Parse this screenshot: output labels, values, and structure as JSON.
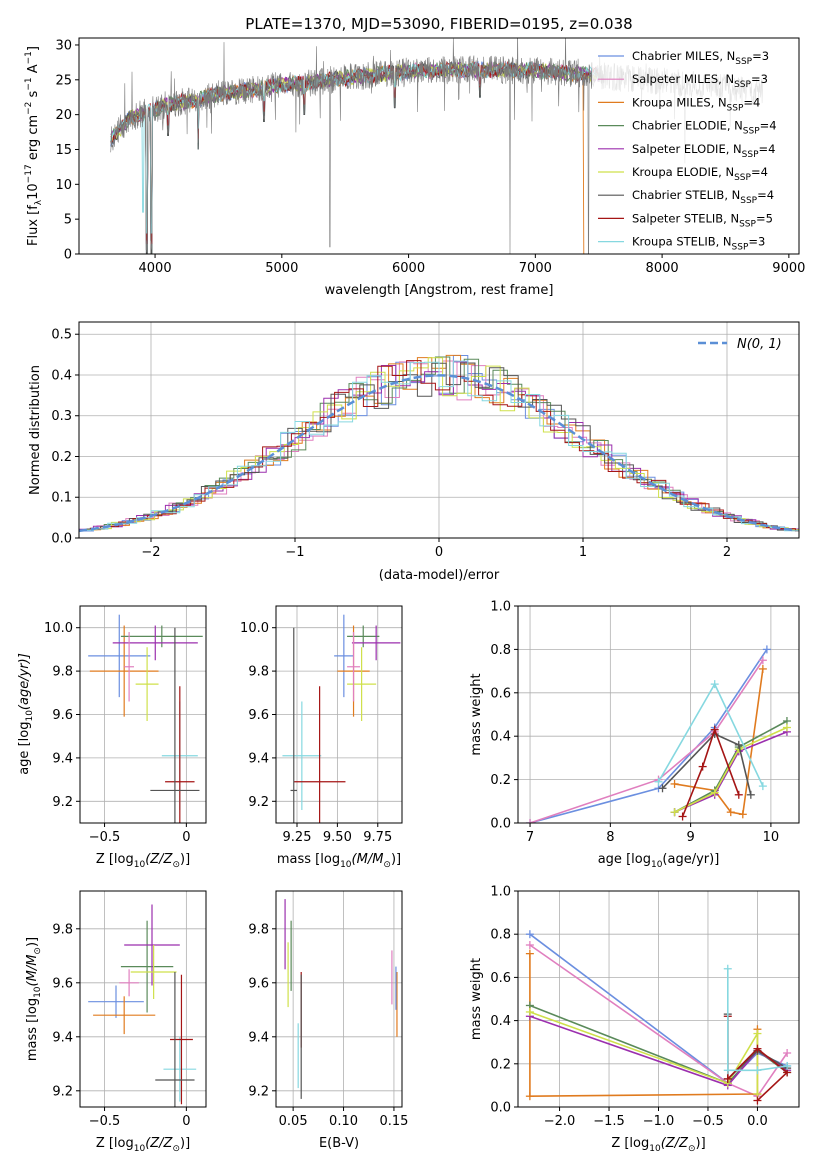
{
  "figure": {
    "title": "PLATE=1370, MJD=53090, FIBERID=0195, z=0.038"
  },
  "colors": {
    "Chabrier MILES": "#6b8fe0",
    "Salpeter MILES": "#e07fbf",
    "Kroupa MILES": "#e07b1f",
    "Chabrier ELODIE": "#5a8a5a",
    "Salpeter ELODIE": "#9b2fae",
    "Kroupa ELODIE": "#cfe04a",
    "Chabrier STELIB": "#555555",
    "Salpeter STELIB": "#a51515",
    "Kroupa STELIB": "#86d8e0",
    "normal": "#5b8fd6",
    "spectrum": "#7a7a7a"
  },
  "chart_data": [
    {
      "id": "spectrum",
      "type": "line",
      "xlabel": "wavelength [Angstrom, rest frame]",
      "ylabel": "Flux [f",
      "ylabel_sub": "λ",
      "ylabel_rest": "10",
      "ylabel_sup1": "−17",
      "ylabel_tail": " erg cm",
      "ylabel_sup2": "−2",
      "ylabel_tail2": " s",
      "ylabel_sup3": "−1",
      "ylabel_tail3": " A",
      "ylabel_sup4": "−1",
      "ylabel_end": "]",
      "xlim": [
        3400,
        9080
      ],
      "ylim": [
        0,
        31
      ],
      "xticks": [
        4000,
        5000,
        6000,
        7000,
        8000,
        9000
      ],
      "yticks": [
        0,
        5,
        10,
        15,
        20,
        25,
        30
      ],
      "grid": false,
      "legend_position": "top-right",
      "legend": [
        {
          "name": "Chabrier MILES, N",
          "sub": "SSP",
          "tail": "=3",
          "color": "#6b8fe0"
        },
        {
          "name": "Salpeter MILES, N",
          "sub": "SSP",
          "tail": "=3",
          "color": "#e07fbf"
        },
        {
          "name": "Kroupa MILES, N",
          "sub": "SSP",
          "tail": "=4",
          "color": "#e07b1f"
        },
        {
          "name": "Chabrier ELODIE, N",
          "sub": "SSP",
          "tail": "=4",
          "color": "#5a8a5a"
        },
        {
          "name": "Salpeter ELODIE, N",
          "sub": "SSP",
          "tail": "=4",
          "color": "#9b2fae"
        },
        {
          "name": "Kroupa ELODIE, N",
          "sub": "SSP",
          "tail": "=4",
          "color": "#cfe04a"
        },
        {
          "name": "Chabrier STELIB, N",
          "sub": "SSP",
          "tail": "=4",
          "color": "#555555"
        },
        {
          "name": "Salpeter STELIB, N",
          "sub": "SSP",
          "tail": "=5",
          "color": "#a51515"
        },
        {
          "name": "Kroupa STELIB, N",
          "sub": "SSP",
          "tail": "=3",
          "color": "#86d8e0"
        }
      ],
      "continuum": [
        [
          3650,
          16.5
        ],
        [
          3800,
          19.5
        ],
        [
          3950,
          20.5
        ],
        [
          4100,
          21.5
        ],
        [
          4300,
          22.0
        ],
        [
          4500,
          23.0
        ],
        [
          4800,
          23.6
        ],
        [
          5000,
          24.3
        ],
        [
          5200,
          24.5
        ],
        [
          5500,
          25.3
        ],
        [
          6000,
          26.2
        ],
        [
          6500,
          26.5
        ],
        [
          7000,
          26.3
        ],
        [
          7400,
          25.8
        ],
        [
          7700,
          25.2
        ],
        [
          8000,
          24.8
        ],
        [
          8500,
          23.8
        ],
        [
          8800,
          23.2
        ]
      ],
      "spectrum_range": [
        3650,
        8800
      ],
      "model_range": [
        3650,
        7500
      ],
      "absorption_lines": [
        [
          3934,
          0
        ],
        [
          3969,
          0
        ],
        [
          4102,
          17
        ],
        [
          4340,
          15
        ],
        [
          4861,
          19
        ],
        [
          5175,
          20
        ],
        [
          5893,
          21
        ],
        [
          6563,
          22.5
        ]
      ],
      "spikes": [
        [
          5380,
          1
        ],
        [
          6800,
          0
        ],
        [
          7420,
          0
        ],
        [
          8180,
          13
        ],
        [
          8930,
          19
        ]
      ]
    },
    {
      "id": "residuals",
      "type": "histogram",
      "xlabel": "(data-model)/error",
      "ylabel": "Normed distribution",
      "xlim": [
        -2.5,
        2.5
      ],
      "ylim": [
        0,
        0.53
      ],
      "xticks": [
        -2,
        -1,
        0,
        1,
        2
      ],
      "yticks": [
        0,
        0.1,
        0.2,
        0.3,
        0.4,
        0.5
      ],
      "grid": true,
      "legend_position": "top-right",
      "normal_label": "N(0, 1)",
      "bin_width": 0.1
    },
    {
      "id": "age-vs-Z",
      "type": "scatter",
      "xlabel": "Z [log",
      "xlabel_sub": "10",
      "xlabel_tail": "(Z/Z",
      "xlabel_sub2": "⊙",
      "xlabel_end": ")]",
      "ylabel": "age  [log",
      "ylabel_sub": "10",
      "ylabel_end": "(age/yr)]",
      "xlim": [
        -0.65,
        0.12
      ],
      "ylim": [
        9.1,
        10.1
      ],
      "xticks": [
        -0.5,
        0.0
      ],
      "yticks": [
        9.2,
        9.4,
        9.6,
        9.8,
        10.0
      ],
      "grid": true,
      "points": [
        {
          "series": "Chabrier MILES",
          "x": -0.41,
          "y": 9.87,
          "xerr": 0.19,
          "yerr": 0.19
        },
        {
          "series": "Kroupa MILES",
          "x": -0.38,
          "y": 9.8,
          "xerr": 0.21,
          "yerr": 0.21
        },
        {
          "series": "Kroupa ELODIE",
          "x": -0.24,
          "y": 9.74,
          "xerr": 0.07,
          "yerr": 0.17
        },
        {
          "series": "Chabrier ELODIE",
          "x": -0.15,
          "y": 9.96,
          "xerr": 0.25,
          "yerr": 0.05
        },
        {
          "series": "Salpeter ELODIE",
          "x": -0.19,
          "y": 9.93,
          "xerr": 0.26,
          "yerr": 0.08
        },
        {
          "series": "Salpeter MILES",
          "x": -0.35,
          "y": 9.82,
          "xerr": 0.03,
          "yerr": 0.16
        },
        {
          "series": "Kroupa STELIB",
          "x": -0.04,
          "y": 9.41,
          "xerr": 0.11,
          "yerr": 0.25
        },
        {
          "series": "Salpeter STELIB",
          "x": -0.04,
          "y": 9.29,
          "xerr": 0.09,
          "yerr": 0.44
        },
        {
          "series": "Chabrier STELIB",
          "x": -0.07,
          "y": 9.25,
          "xerr": 0.15,
          "yerr": 0.75
        }
      ]
    },
    {
      "id": "age-vs-mass",
      "type": "scatter",
      "xlabel": "mass [log",
      "xlabel_sub": "10",
      "xlabel_tail": "(M/M",
      "xlabel_sub2": "⊙",
      "xlabel_end": ")]",
      "ylabel": "",
      "xlim": [
        9.12,
        9.9
      ],
      "ylim": [
        9.1,
        10.1
      ],
      "xticks": [
        9.25,
        9.5,
        9.75
      ],
      "xtick_labels": [
        "9.25",
        "9.50",
        "9.75"
      ],
      "yticks": [
        9.2,
        9.4,
        9.6,
        9.8,
        10.0
      ],
      "grid": true,
      "points": [
        {
          "series": "Chabrier MILES",
          "x": 9.54,
          "y": 9.87,
          "xerr": 0.06,
          "yerr": 0.19
        },
        {
          "series": "Kroupa MILES",
          "x": 9.6,
          "y": 9.8,
          "xerr": 0.1,
          "yerr": 0.21
        },
        {
          "series": "Kroupa ELODIE",
          "x": 9.65,
          "y": 9.74,
          "xerr": 0.09,
          "yerr": 0.17
        },
        {
          "series": "Chabrier ELODIE",
          "x": 9.66,
          "y": 9.96,
          "xerr": 0.1,
          "yerr": 0.05
        },
        {
          "series": "Salpeter ELODIE",
          "x": 9.74,
          "y": 9.93,
          "xerr": 0.15,
          "yerr": 0.08
        },
        {
          "series": "Salpeter MILES",
          "x": 9.6,
          "y": 9.82,
          "xerr": 0.04,
          "yerr": 0.16
        },
        {
          "series": "Kroupa STELIB",
          "x": 9.28,
          "y": 9.41,
          "xerr": 0.12,
          "yerr": 0.25
        },
        {
          "series": "Salpeter STELIB",
          "x": 9.39,
          "y": 9.29,
          "xerr": 0.16,
          "yerr": 0.44
        },
        {
          "series": "Chabrier STELIB",
          "x": 9.23,
          "y": 9.25,
          "xerr": 0.02,
          "yerr": 0.75
        }
      ]
    },
    {
      "id": "massweight-vs-age",
      "type": "line",
      "xlabel": "age  [log",
      "xlabel_sub": "10",
      "xlabel_end": "(age/yr)]",
      "ylabel": "mass weight",
      "xlim": [
        6.85,
        10.35
      ],
      "ylim": [
        0,
        1.0
      ],
      "xticks": [
        7,
        8,
        9,
        10
      ],
      "yticks": [
        0,
        0.2,
        0.4,
        0.6,
        0.8,
        1.0
      ],
      "grid": true,
      "series": [
        {
          "name": "Chabrier MILES",
          "points": [
            [
              7.0,
              0.0
            ],
            [
              8.6,
              0.16
            ],
            [
              9.3,
              0.44
            ],
            [
              9.95,
              0.8
            ]
          ]
        },
        {
          "name": "Salpeter MILES",
          "points": [
            [
              7.0,
              0.0
            ],
            [
              8.6,
              0.2
            ],
            [
              9.3,
              0.42
            ],
            [
              9.9,
              0.75
            ]
          ]
        },
        {
          "name": "Kroupa MILES",
          "points": [
            [
              8.8,
              0.18
            ],
            [
              9.3,
              0.15
            ],
            [
              9.5,
              0.05
            ],
            [
              9.65,
              0.04
            ],
            [
              9.9,
              0.71
            ]
          ]
        },
        {
          "name": "Chabrier ELODIE",
          "points": [
            [
              8.8,
              0.05
            ],
            [
              9.3,
              0.15
            ],
            [
              9.6,
              0.35
            ],
            [
              10.2,
              0.47
            ]
          ]
        },
        {
          "name": "Salpeter ELODIE",
          "points": [
            [
              8.8,
              0.05
            ],
            [
              9.3,
              0.13
            ],
            [
              9.6,
              0.33
            ],
            [
              10.2,
              0.42
            ]
          ]
        },
        {
          "name": "Kroupa ELODIE",
          "points": [
            [
              8.8,
              0.05
            ],
            [
              9.3,
              0.14
            ],
            [
              9.6,
              0.34
            ],
            [
              10.2,
              0.44
            ]
          ]
        },
        {
          "name": "Chabrier STELIB",
          "points": [
            [
              8.65,
              0.16
            ],
            [
              9.3,
              0.41
            ],
            [
              9.6,
              0.36
            ],
            [
              9.75,
              0.13
            ]
          ]
        },
        {
          "name": "Salpeter STELIB",
          "points": [
            [
              8.9,
              0.03
            ],
            [
              9.15,
              0.26
            ],
            [
              9.3,
              0.43
            ],
            [
              9.6,
              0.13
            ]
          ]
        },
        {
          "name": "Kroupa STELIB",
          "points": [
            [
              8.6,
              0.19
            ],
            [
              9.3,
              0.64
            ],
            [
              9.9,
              0.17
            ]
          ]
        }
      ]
    },
    {
      "id": "mass-vs-Z",
      "type": "scatter",
      "xlabel": "Z [log",
      "xlabel_sub": "10",
      "xlabel_tail": "(Z/Z",
      "xlabel_sub2": "⊙",
      "xlabel_end": ")]",
      "ylabel": "mass [log",
      "ylabel_sub": "10",
      "ylabel_tail": "(M/M",
      "ylabel_sub2": "⊙",
      "ylabel_end": ")]",
      "xlim": [
        -0.65,
        0.12
      ],
      "ylim": [
        9.14,
        9.94
      ],
      "xticks": [
        -0.5,
        0.0
      ],
      "yticks": [
        9.2,
        9.4,
        9.6,
        9.8
      ],
      "grid": true,
      "points": [
        {
          "series": "Chabrier MILES",
          "x": -0.43,
          "y": 9.53,
          "xerr": 0.17,
          "yerr": 0.06
        },
        {
          "series": "Kroupa MILES",
          "x": -0.38,
          "y": 9.48,
          "xerr": 0.19,
          "yerr": 0.07
        },
        {
          "series": "Salpeter MILES",
          "x": -0.35,
          "y": 9.6,
          "xerr": 0.06,
          "yerr": 0.05
        },
        {
          "series": "Chabrier ELODIE",
          "x": -0.24,
          "y": 9.66,
          "xerr": 0.16,
          "yerr": 0.17
        },
        {
          "series": "Salpeter ELODIE",
          "x": -0.21,
          "y": 9.74,
          "xerr": 0.17,
          "yerr": 0.15
        },
        {
          "series": "Kroupa ELODIE",
          "x": -0.2,
          "y": 9.64,
          "xerr": 0.14,
          "yerr": 0.1
        },
        {
          "series": "Kroupa STELIB",
          "x": -0.04,
          "y": 9.28,
          "xerr": 0.1,
          "yerr": 0.12
        },
        {
          "series": "Salpeter STELIB",
          "x": -0.03,
          "y": 9.39,
          "xerr": 0.07,
          "yerr": 0.24
        },
        {
          "series": "Chabrier STELIB",
          "x": -0.07,
          "y": 9.24,
          "xerr": 0.12,
          "yerr": 0.4
        }
      ]
    },
    {
      "id": "mass-vs-EBV",
      "type": "scatter",
      "xlabel": "E(B-V)",
      "ylabel": "",
      "xlim": [
        0.033,
        0.158
      ],
      "ylim": [
        9.14,
        9.94
      ],
      "xticks": [
        0.05,
        0.1,
        0.15
      ],
      "xtick_labels": [
        "0.05",
        "0.10",
        "0.15"
      ],
      "yticks": [
        9.2,
        9.4,
        9.6,
        9.8
      ],
      "grid": true,
      "points": [
        {
          "series": "Salpeter ELODIE",
          "x": 0.042,
          "y": 9.78,
          "yerr": 0.13
        },
        {
          "series": "Kroupa ELODIE",
          "x": 0.045,
          "y": 9.63,
          "yerr": 0.12
        },
        {
          "series": "Chabrier ELODIE",
          "x": 0.048,
          "y": 9.7,
          "yerr": 0.13
        },
        {
          "series": "Kroupa STELIB",
          "x": 0.055,
          "y": 9.33,
          "yerr": 0.12
        },
        {
          "series": "Salpeter STELIB",
          "x": 0.058,
          "y": 9.5,
          "yerr": 0.14
        },
        {
          "series": "Chabrier STELIB",
          "x": 0.058,
          "y": 9.4,
          "yerr": 0.23
        },
        {
          "series": "Salpeter MILES",
          "x": 0.148,
          "y": 9.62,
          "yerr": 0.1
        },
        {
          "series": "Kroupa MILES",
          "x": 0.153,
          "y": 9.52,
          "yerr": 0.12
        },
        {
          "series": "Chabrier MILES",
          "x": 0.152,
          "y": 9.58,
          "yerr": 0.08
        }
      ]
    },
    {
      "id": "massweight-vs-Z",
      "type": "line",
      "xlabel": "Z [log",
      "xlabel_sub": "10",
      "xlabel_tail": "(Z/Z",
      "xlabel_sub2": "⊙",
      "xlabel_end": ")]",
      "ylabel": "mass weight",
      "xlim": [
        -2.42,
        0.42
      ],
      "ylim": [
        0,
        1.0
      ],
      "xticks": [
        -2.0,
        -1.5,
        -1.0,
        -0.5,
        0.0
      ],
      "xtick_labels": [
        "−2.0",
        "−1.5",
        "−1.0",
        "−0.5",
        "0.0"
      ],
      "yticks": [
        0,
        0.2,
        0.4,
        0.6,
        0.8,
        1.0
      ],
      "grid": true,
      "series": [
        {
          "name": "Chabrier MILES",
          "points": [
            [
              -2.3,
              0.8
            ],
            [
              -0.3,
              0.11
            ],
            [
              0.0,
              0.25
            ],
            [
              0.3,
              0.19
            ]
          ]
        },
        {
          "name": "Salpeter MILES",
          "points": [
            [
              -2.3,
              0.75
            ],
            [
              -0.3,
              0.11
            ],
            [
              0.0,
              0.05
            ],
            [
              0.3,
              0.25
            ]
          ]
        },
        {
          "name": "Kroupa MILES",
          "points": [
            [
              -2.3,
              0.71
            ],
            [
              -2.3,
              0.05
            ],
            [
              0.0,
              0.06
            ],
            [
              0.0,
              0.36
            ]
          ]
        },
        {
          "name": "Chabrier ELODIE",
          "points": [
            [
              -2.3,
              0.47
            ],
            [
              -0.3,
              0.11
            ],
            [
              0.0,
              0.26
            ],
            [
              0.3,
              0.16
            ]
          ]
        },
        {
          "name": "Salpeter ELODIE",
          "points": [
            [
              -2.3,
              0.42
            ],
            [
              -0.3,
              0.1
            ],
            [
              0.0,
              0.26
            ],
            [
              0.3,
              0.17
            ]
          ]
        },
        {
          "name": "Kroupa ELODIE",
          "points": [
            [
              -2.3,
              0.44
            ],
            [
              -0.3,
              0.11
            ],
            [
              0.0,
              0.34
            ],
            [
              0.0,
              0.06
            ]
          ]
        },
        {
          "name": "Chabrier STELIB",
          "points": [
            [
              -0.3,
              0.43
            ],
            [
              -0.3,
              0.13
            ],
            [
              0.0,
              0.26
            ],
            [
              0.3,
              0.18
            ]
          ]
        },
        {
          "name": "Salpeter STELIB",
          "points": [
            [
              -0.3,
              0.42
            ],
            [
              -0.3,
              0.13
            ],
            [
              0.0,
              0.27
            ],
            [
              0.3,
              0.16
            ],
            [
              0.0,
              0.03
            ]
          ]
        },
        {
          "name": "Kroupa STELIB",
          "points": [
            [
              -0.3,
              0.64
            ],
            [
              -0.3,
              0.17
            ],
            [
              0.0,
              0.17
            ],
            [
              0.3,
              0.19
            ]
          ]
        }
      ]
    }
  ]
}
